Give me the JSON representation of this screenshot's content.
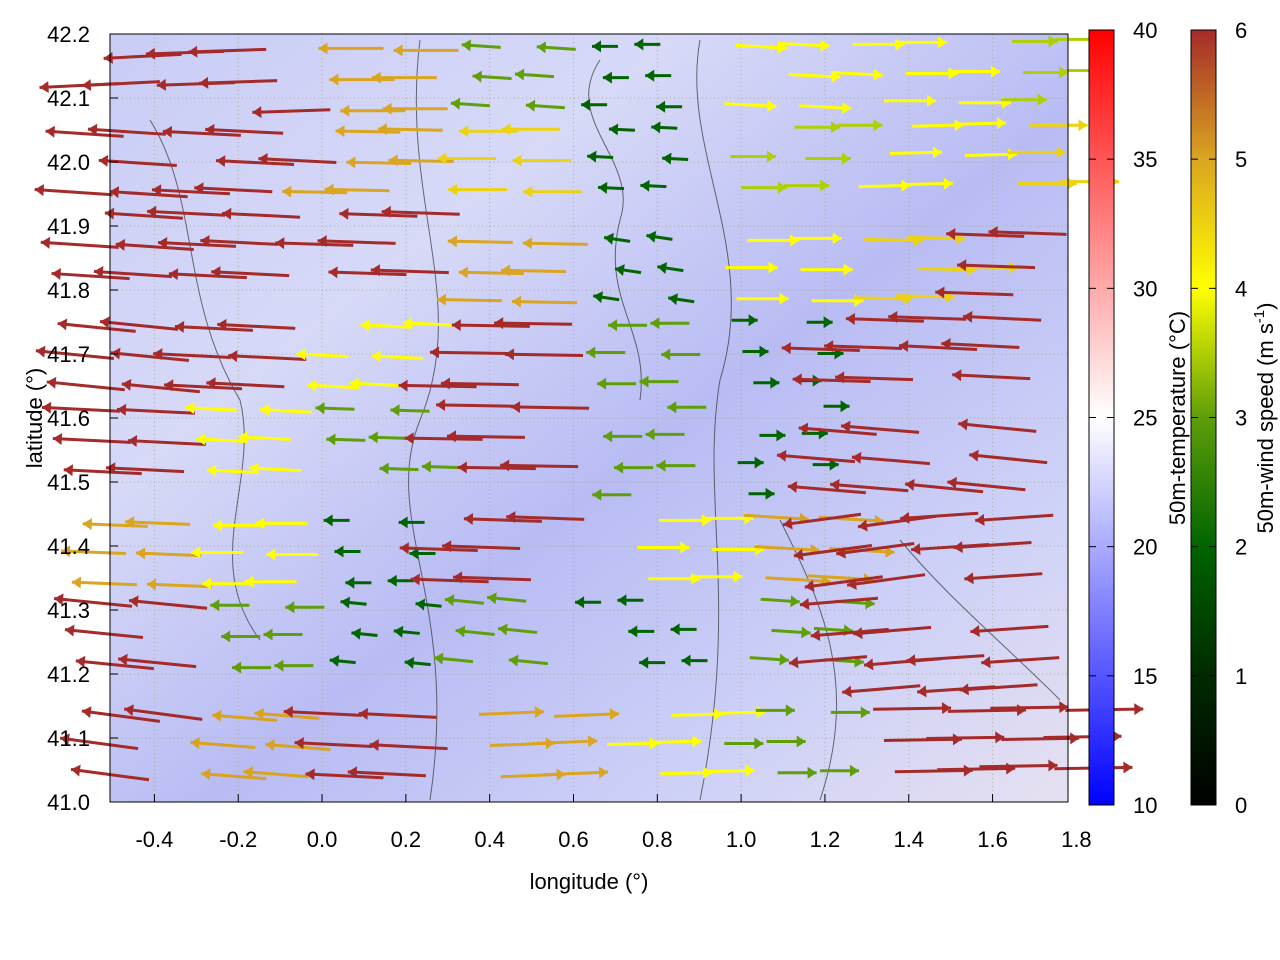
{
  "chart_data": {
    "type": "vector-field",
    "xlabel": "longitude (°)",
    "ylabel": "latitude (°)",
    "xlim": [
      -0.506,
      1.78
    ],
    "ylim": [
      41.0,
      42.2
    ],
    "xticks": [
      "-0.4",
      "-0.2",
      "0.0",
      "0.2",
      "0.4",
      "0.6",
      "0.8",
      "1.0",
      "1.2",
      "1.4",
      "1.6",
      "1.8"
    ],
    "xtick_values": [
      -0.4,
      -0.2,
      0.0,
      0.2,
      0.4,
      0.6,
      0.8,
      1.0,
      1.2,
      1.4,
      1.6,
      1.8
    ],
    "yticks": [
      "41.0",
      "41.1",
      "41.2",
      "41.3",
      "41.4",
      "41.5",
      "41.6",
      "41.7",
      "41.8",
      "41.9",
      "42.0",
      "42.1",
      "42.2"
    ],
    "ytick_values": [
      41.0,
      41.1,
      41.2,
      41.3,
      41.4,
      41.5,
      41.6,
      41.7,
      41.8,
      41.9,
      42.0,
      42.1,
      42.2
    ],
    "grid": true,
    "background": "50m-temperature field, mostly 19–24 °C",
    "temperature_colorbar": {
      "label": "50m-temperature (°C)",
      "range": [
        10,
        40
      ],
      "ticks": [
        "10",
        "15",
        "20",
        "25",
        "30",
        "35",
        "40"
      ],
      "tick_values": [
        10,
        15,
        20,
        25,
        30,
        35,
        40
      ],
      "colors": [
        "#0000ff",
        "#ffffff",
        "#ff0000"
      ]
    },
    "wind_colorbar": {
      "label": "50m-wind speed (m s",
      "label_sup": "-1",
      "label_end": ")",
      "range": [
        0,
        6
      ],
      "ticks": [
        "0",
        "1",
        "2",
        "3",
        "4",
        "5",
        "6"
      ],
      "tick_values": [
        0,
        1,
        2,
        3,
        4,
        5,
        6
      ],
      "colors": [
        "#000000",
        "#002a00",
        "#006400",
        "#5f9e0a",
        "#ffff00",
        "#daa520",
        "#a52a2a"
      ]
    },
    "vector_columns": [
      "lon",
      "lat",
      "u",
      "v"
    ],
    "vectors": [
      [
        -0.4,
        42.15,
        -6,
        -0.3
      ],
      [
        -0.1,
        42.15,
        -6,
        -0.2
      ],
      [
        0.2,
        42.15,
        -5,
        0
      ],
      [
        0.5,
        42.15,
        -3,
        0.2
      ],
      [
        0.8,
        42.15,
        -2,
        0
      ],
      [
        1.1,
        42.15,
        4,
        -0.2
      ],
      [
        1.4,
        42.15,
        4,
        0
      ],
      [
        1.7,
        42.15,
        3.5,
        0
      ],
      [
        -0.4,
        42.0,
        -6,
        0.4
      ],
      [
        -0.1,
        42.0,
        -6,
        0.3
      ],
      [
        0.2,
        42.0,
        -5,
        0.1
      ],
      [
        0.5,
        42.0,
        -4.5,
        0
      ],
      [
        0.8,
        42.0,
        -2,
        0.1
      ],
      [
        1.1,
        42.0,
        3.5,
        0
      ],
      [
        1.4,
        42.0,
        4,
        0.1
      ],
      [
        1.7,
        42.0,
        4.5,
        0
      ],
      [
        -0.4,
        41.85,
        -6,
        0.4
      ],
      [
        -0.1,
        41.85,
        -6,
        0.3
      ],
      [
        0.2,
        41.85,
        -6,
        0.2
      ],
      [
        0.5,
        41.85,
        -5,
        0.1
      ],
      [
        0.8,
        41.85,
        -2,
        0.3
      ],
      [
        1.1,
        41.85,
        4,
        0
      ],
      [
        1.4,
        41.85,
        4.5,
        -0.1
      ],
      [
        1.7,
        41.85,
        -6,
        0.2
      ],
      [
        -0.4,
        41.7,
        -6,
        0.6
      ],
      [
        -0.1,
        41.7,
        -6,
        0.3
      ],
      [
        0.2,
        41.7,
        -4,
        0.2
      ],
      [
        0.5,
        41.7,
        -6,
        0.1
      ],
      [
        0.8,
        41.7,
        -3,
        0
      ],
      [
        1.1,
        41.7,
        2,
        0
      ],
      [
        1.4,
        41.7,
        -6,
        0.2
      ],
      [
        1.7,
        41.7,
        -6,
        0.3
      ],
      [
        -0.4,
        41.55,
        -6,
        0.3
      ],
      [
        -0.1,
        41.55,
        -4,
        0.2
      ],
      [
        0.2,
        41.55,
        -3,
        0.1
      ],
      [
        0.5,
        41.55,
        -6,
        0.1
      ],
      [
        0.8,
        41.55,
        -3,
        0
      ],
      [
        1.1,
        41.55,
        2,
        0
      ],
      [
        1.4,
        41.55,
        -6,
        0.5
      ],
      [
        1.7,
        41.55,
        -6,
        0.6
      ],
      [
        -0.4,
        41.4,
        -5,
        0.2
      ],
      [
        -0.1,
        41.4,
        -4,
        0
      ],
      [
        0.2,
        41.4,
        -2,
        0
      ],
      [
        0.5,
        41.4,
        -6,
        0.2
      ],
      [
        0.8,
        41.4,
        4,
        0
      ],
      [
        1.1,
        41.4,
        5,
        -0.3
      ],
      [
        1.4,
        41.4,
        -6,
        -0.8
      ],
      [
        1.7,
        41.4,
        -6,
        -0.4
      ],
      [
        -0.4,
        41.25,
        -6,
        0.6
      ],
      [
        -0.1,
        41.25,
        -3,
        0
      ],
      [
        0.2,
        41.25,
        -2,
        0.2
      ],
      [
        0.5,
        41.25,
        -3,
        0.3
      ],
      [
        0.8,
        41.25,
        -2,
        0
      ],
      [
        1.1,
        41.25,
        3,
        -0.2
      ],
      [
        1.4,
        41.25,
        -6,
        -0.5
      ],
      [
        1.7,
        41.25,
        -6,
        -0.4
      ],
      [
        -0.4,
        41.1,
        -6,
        0.8
      ],
      [
        -0.1,
        41.1,
        -5,
        0.4
      ],
      [
        0.2,
        41.1,
        -6,
        0.3
      ],
      [
        0.5,
        41.1,
        5,
        0.2
      ],
      [
        0.8,
        41.1,
        4,
        0.1
      ],
      [
        1.1,
        41.1,
        3,
        0
      ],
      [
        1.4,
        41.1,
        6,
        0.1
      ],
      [
        1.7,
        41.1,
        6,
        0.1
      ]
    ]
  }
}
